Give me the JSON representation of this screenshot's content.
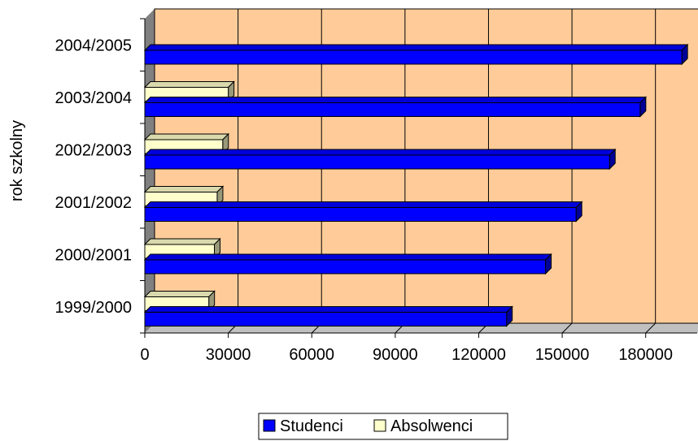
{
  "chart_data": {
    "type": "bar",
    "orientation": "horizontal",
    "style": "3d",
    "categories": [
      "1999/2000",
      "2000/2001",
      "2001/2002",
      "2002/2003",
      "2003/2004",
      "2004/2005"
    ],
    "series": [
      {
        "name": "Studenci",
        "color": "#0000ff",
        "values": [
          130000,
          144000,
          155000,
          167000,
          178000,
          193000
        ]
      },
      {
        "name": "Absolwenci",
        "color": "#ffffcc",
        "values": [
          23000,
          25000,
          26000,
          28000,
          30000,
          null
        ]
      }
    ],
    "xlim": [
      0,
      195000
    ],
    "xticks": [
      "0",
      "30000",
      "60000",
      "90000",
      "120000",
      "150000",
      "180000"
    ],
    "ylabel": "rok szkolny",
    "xlabel": "",
    "grid": true,
    "plot_background": "#ffcc99",
    "legend_position": "bottom"
  }
}
